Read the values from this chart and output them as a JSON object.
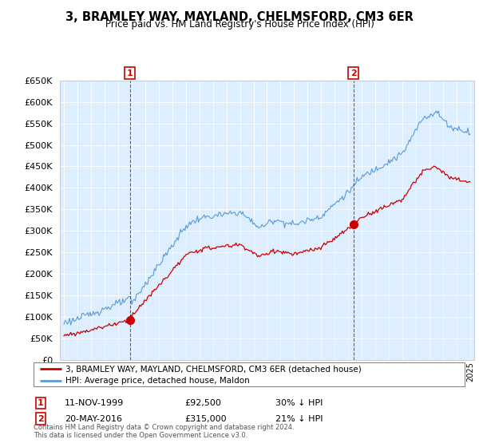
{
  "title": "3, BRAMLEY WAY, MAYLAND, CHELMSFORD, CM3 6ER",
  "subtitle": "Price paid vs. HM Land Registry's House Price Index (HPI)",
  "legend_line1": "3, BRAMLEY WAY, MAYLAND, CHELMSFORD, CM3 6ER (detached house)",
  "legend_line2": "HPI: Average price, detached house, Maldon",
  "transaction1_date": "11-NOV-1999",
  "transaction1_price": "£92,500",
  "transaction1_hpi": "30% ↓ HPI",
  "transaction2_date": "20-MAY-2016",
  "transaction2_price": "£315,000",
  "transaction2_hpi": "21% ↓ HPI",
  "footer": "Contains HM Land Registry data © Crown copyright and database right 2024.\nThis data is licensed under the Open Government Licence v3.0.",
  "hpi_color": "#5b9bd5",
  "hpi_fill_color": "#ddeeff",
  "price_color": "#cc0000",
  "marker1_x": 1999.87,
  "marker1_y": 92500,
  "marker2_x": 2016.38,
  "marker2_y": 315000,
  "ylim": [
    0,
    650000
  ],
  "yticks": [
    0,
    50000,
    100000,
    150000,
    200000,
    250000,
    300000,
    350000,
    400000,
    450000,
    500000,
    550000,
    600000,
    650000
  ],
  "xlim_start": 1994.7,
  "xlim_end": 2025.3
}
